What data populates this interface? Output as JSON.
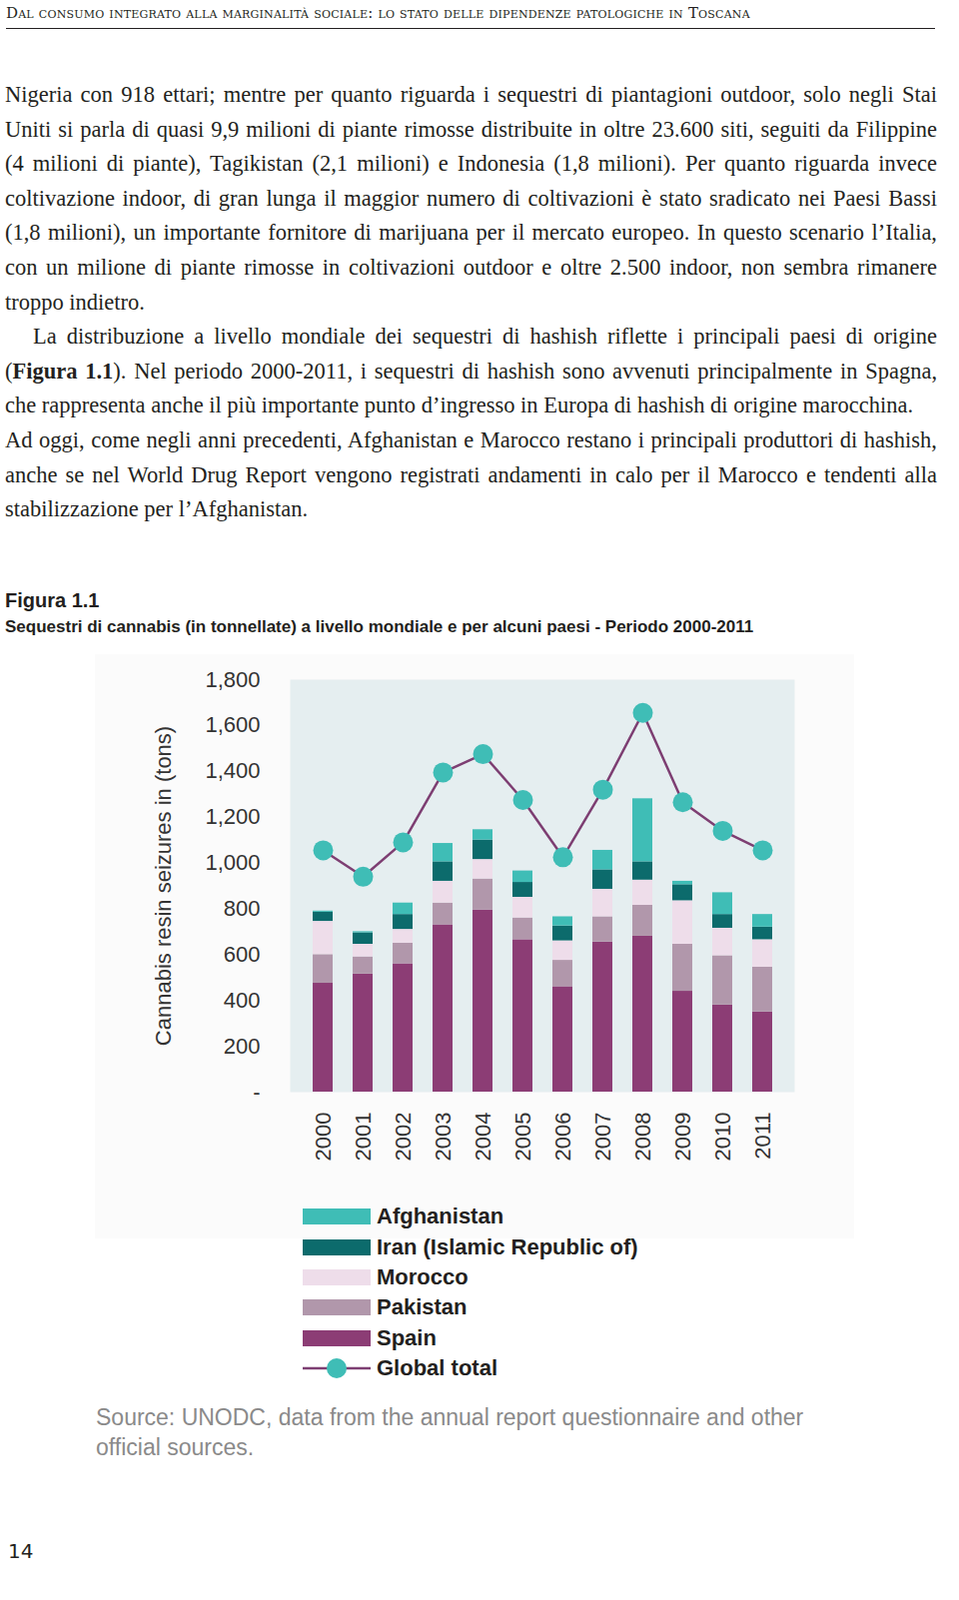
{
  "header": "Dal consumo integrato alla marginalità sociale: lo stato delle dipendenze patologiche in Toscana",
  "paragraphs": [
    "Nigeria con 918 ettari; mentre per quanto riguarda i sequestri di piantagioni outdoor, solo negli Stai Uniti si parla di quasi 9,9 milioni di piante rimosse distribuite in oltre 23.600 siti, seguiti da Filippine (4 milioni di piante), Tagikistan (2,1 milioni) e Indonesia (1,8 milioni). Per quanto riguarda invece coltivazione indoor, di gran lunga il maggior numero di coltivazioni è stato sradicato nei Paesi Bassi (1,8 milioni), un importante fornitore di marijuana per il mercato europeo. In questo scenario l’Italia, con un milione di piante rimosse in coltivazioni outdoor e oltre 2.500 indoor, non sembra rimanere troppo indietro.",
    "La distribuzione a livello mondiale dei sequestri di hashish riflette i principali paesi di origine (Figura 1.1). Nel periodo 2000-2011, i sequestri di hashish sono avvenuti principalmente in Spagna, che rappresenta anche il più importante punto d’ingresso in Europa di hashish di origine marocchina.",
    "Ad oggi, come negli anni precedenti, Afghanistan e Marocco restano i principali produttori di hashish, anche se nel World Drug Report vengono registrati andamenti in calo per il Marocco e tendenti alla stabilizzazione per l’Afghanistan."
  ],
  "page_number": "14",
  "chart_data": {
    "type": "bar",
    "figure_label": "Figura 1.1",
    "title": "Sequestri di cannabis (in tonnellate) a livello mondiale e per alcuni paesi - Periodo 2000-2011",
    "y_label": "Cannabis resin seizures in (tons)",
    "source": "Source: UNODC, data from the annual report questionnaire and other official sources.",
    "categories": [
      "2000",
      "2001",
      "2002",
      "2003",
      "2004",
      "2005",
      "2006",
      "2007",
      "2008",
      "2009",
      "2010",
      "2011"
    ],
    "stacked": true,
    "grid": false,
    "legend": "bottom",
    "ylim": [
      0,
      1800
    ],
    "yticks": [
      {
        "value": 0,
        "label": "-"
      },
      200,
      400,
      600,
      800,
      {
        "value": 1000,
        "label": "1,000"
      },
      {
        "value": 1200,
        "label": "1,200"
      },
      {
        "value": 1400,
        "label": "1,400"
      },
      {
        "value": 1600,
        "label": "1,600"
      },
      {
        "value": 1800,
        "label": "1,800"
      }
    ],
    "series": [
      {
        "name": "Afghanistan",
        "type": "bar",
        "color": "#3fbdb6",
        "values": [
          5,
          5,
          50,
          80,
          45,
          50,
          40,
          85,
          275,
          15,
          95,
          55
        ]
      },
      {
        "name": "Iran (Islamic Republic of)",
        "type": "bar",
        "color": "#0c6b6c",
        "values": [
          40,
          50,
          65,
          85,
          85,
          65,
          65,
          85,
          80,
          70,
          60,
          55
        ]
      },
      {
        "name": "Morocco",
        "type": "bar",
        "color": "#eeddea",
        "values": [
          145,
          55,
          60,
          95,
          85,
          90,
          85,
          120,
          110,
          190,
          120,
          120
        ]
      },
      {
        "name": "Pakistan",
        "type": "bar",
        "color": "#b197ab",
        "values": [
          125,
          75,
          90,
          95,
          135,
          95,
          115,
          110,
          135,
          205,
          215,
          195
        ]
      },
      {
        "name": "Spain",
        "type": "bar",
        "color": "#8c3d75",
        "values": [
          475,
          515,
          560,
          730,
          795,
          665,
          460,
          655,
          680,
          440,
          380,
          350
        ]
      },
      {
        "name": "Global total",
        "type": "line",
        "color": "#7d3e72",
        "marker": "circle",
        "values": [
          1055,
          940,
          1090,
          1395,
          1475,
          1275,
          1025,
          1320,
          1655,
          1265,
          1140,
          1055
        ]
      }
    ]
  }
}
